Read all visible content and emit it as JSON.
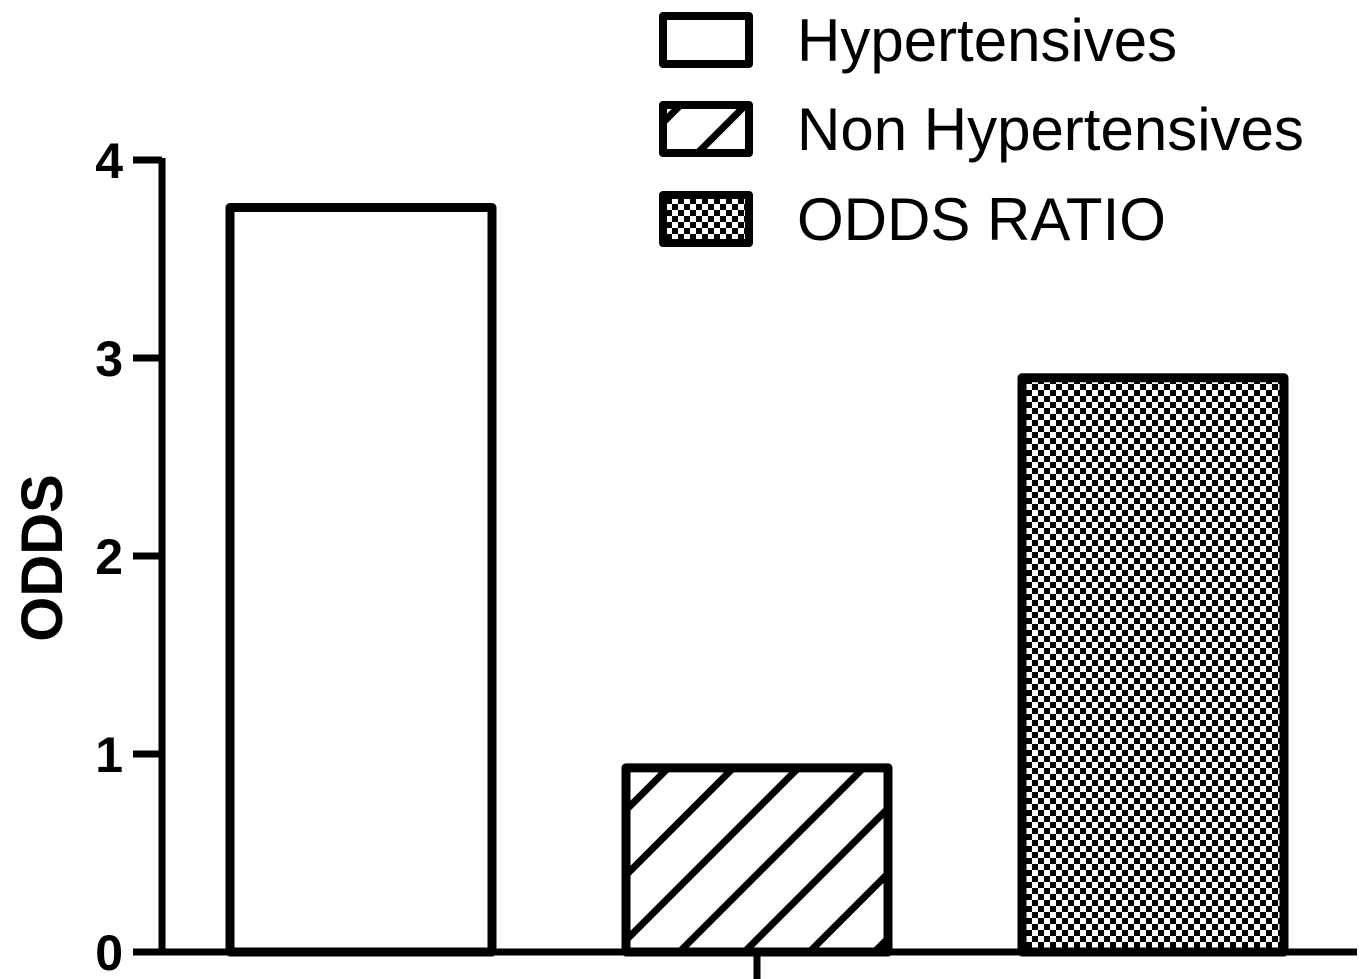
{
  "chart_data": {
    "type": "bar",
    "categories": [
      "Hypertensives",
      "Non Hypertensives",
      "ODDS RATIO"
    ],
    "values": [
      3.76,
      0.93,
      2.9
    ],
    "patterns": [
      "none",
      "diagonal-hatch",
      "checkerboard"
    ],
    "ylabel": "ODDS",
    "xlabel": "",
    "ylim": [
      0,
      4
    ],
    "yticks": [
      "0",
      "1",
      "2",
      "3",
      "4"
    ],
    "grid": false,
    "legend": {
      "placement": "top-right",
      "entries": [
        "Hypertensives",
        "Non Hypertensives",
        "ODDS RATIO"
      ]
    },
    "colors": {
      "stroke": "#000000",
      "fill": "#ffffff"
    }
  }
}
